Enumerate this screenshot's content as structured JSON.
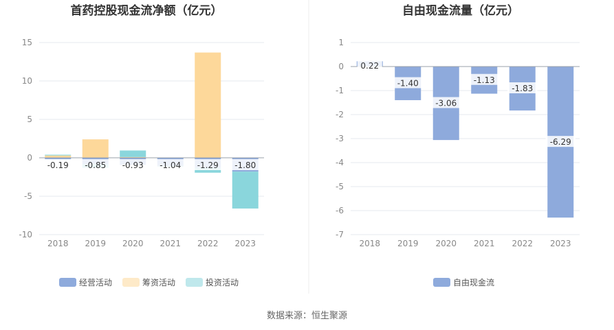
{
  "colors": {
    "operating": "#8eaadc",
    "financing": "#fdd89a",
    "investing": "#8ad6dc",
    "fcf": "#8eaadc",
    "axis": "#9aa0aa",
    "grid": "#e6e9ef",
    "divider": "#eeeeee",
    "label_bg": "#ffffff"
  },
  "source": "数据来源：恒生聚源",
  "chart_data": [
    {
      "type": "bar",
      "stacked": true,
      "title": "首药控股现金流净额（亿元）",
      "categories": [
        "2018",
        "2019",
        "2020",
        "2021",
        "2022",
        "2023"
      ],
      "ylim": [
        -10,
        15
      ],
      "yticks": [
        15,
        10,
        5,
        0,
        -5,
        -10
      ],
      "grid": true,
      "legend_position": "bottom",
      "series": [
        {
          "name": "经营活动",
          "color_key": "operating",
          "values": [
            -0.19,
            -0.85,
            -0.93,
            -1.04,
            -1.29,
            -1.8
          ]
        },
        {
          "name": "筹资活动",
          "color_key": "financing",
          "values": [
            0.3,
            2.4,
            0.1,
            0.0,
            13.7,
            0.0
          ]
        },
        {
          "name": "投资活动",
          "color_key": "investing",
          "values": [
            0.1,
            -0.45,
            0.85,
            -0.1,
            -0.65,
            -4.8
          ]
        }
      ],
      "data_labels": [
        "-0.19",
        "-0.85",
        "-0.93",
        "-1.04",
        "-1.29",
        "-1.80"
      ]
    },
    {
      "type": "bar",
      "title": "自由现金流量（亿元）",
      "categories": [
        "2018",
        "2019",
        "2020",
        "2021",
        "2022",
        "2023"
      ],
      "ylim": [
        -7,
        1
      ],
      "yticks": [
        1,
        0,
        -1,
        -2,
        -3,
        -4,
        -5,
        -6,
        -7
      ],
      "grid": true,
      "legend_position": "bottom",
      "series": [
        {
          "name": "自由现金流",
          "color_key": "fcf",
          "values": [
            0.22,
            -1.4,
            -3.06,
            -1.13,
            -1.83,
            -6.29
          ]
        }
      ],
      "data_labels": [
        "0.22",
        "-1.40",
        "-3.06",
        "-1.13",
        "-1.83",
        "-6.29"
      ]
    }
  ]
}
